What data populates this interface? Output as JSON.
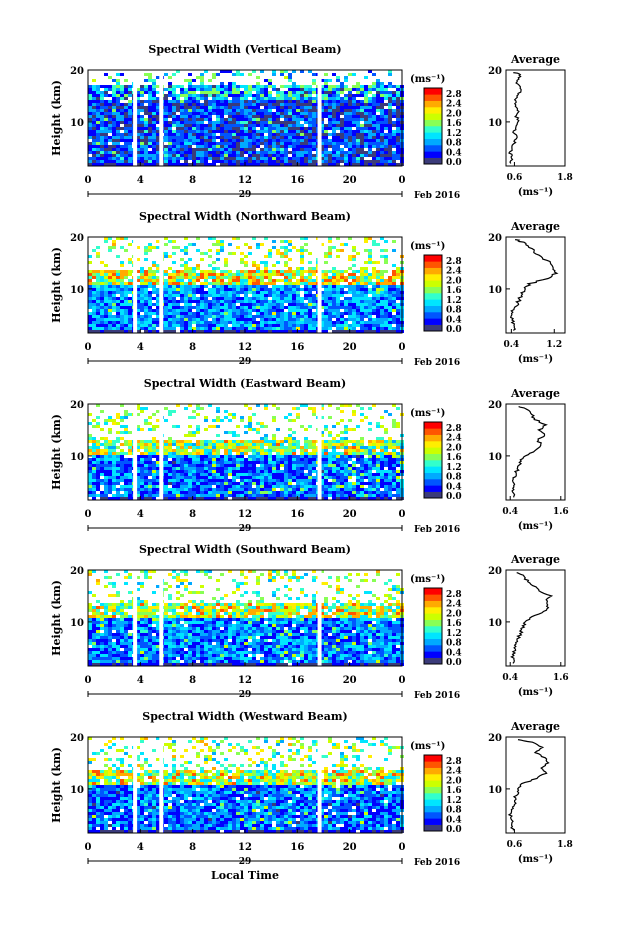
{
  "figure": {
    "xlabel": "Local Time",
    "date_label": "Feb 2016",
    "day_label": "29",
    "colorbar_unit": "(ms⁻¹)",
    "average_title": "Average",
    "average_xlabel": "(ms⁻¹)"
  },
  "colorbar": {
    "ticks": [
      "0.0",
      "0.4",
      "0.8",
      "1.2",
      "1.6",
      "2.0",
      "2.4",
      "2.8"
    ],
    "colors": [
      "#3b3b7a",
      "#0000ff",
      "#0055ff",
      "#00aaff",
      "#00e5ff",
      "#33ffcc",
      "#88ff55",
      "#ccff00",
      "#ffee00",
      "#ffaa00",
      "#ff5500",
      "#ff0000"
    ]
  },
  "chart_data": [
    {
      "type": "heatmap",
      "title": "Spectral Width (Vertical Beam)",
      "ylabel": "Height (km)",
      "x_ticks": [
        "0",
        "4",
        "8",
        "12",
        "16",
        "20",
        "0"
      ],
      "y_ticks": [
        "10",
        "20"
      ],
      "xlim": [
        0,
        24
      ],
      "ylim": [
        1.5,
        20
      ],
      "mean_level": 0.4,
      "layer_top": 15,
      "upper_mean": 0.6,
      "gaps_hours": [
        3.6,
        5.6,
        17.7
      ],
      "profile": {
        "x_ticks": [
          "0.6",
          "1.8"
        ],
        "xlim": [
          0.4,
          1.8
        ],
        "height": [
          2,
          3,
          4,
          5,
          6,
          7,
          8,
          9,
          10,
          11,
          12,
          13,
          14,
          15,
          16,
          17,
          18,
          19,
          19.5
        ],
        "width": [
          0.5,
          0.55,
          0.5,
          0.55,
          0.6,
          0.65,
          0.6,
          0.65,
          0.7,
          0.65,
          0.7,
          0.65,
          0.6,
          0.65,
          0.75,
          0.7,
          0.65,
          0.75,
          0.6
        ]
      }
    },
    {
      "type": "heatmap",
      "title": "Spectral Width (Northward Beam)",
      "ylabel": "Height (km)",
      "x_ticks": [
        "0",
        "4",
        "8",
        "12",
        "16",
        "20",
        "0"
      ],
      "y_ticks": [
        "10",
        "20"
      ],
      "xlim": [
        0,
        24
      ],
      "ylim": [
        1.5,
        20
      ],
      "mean_level": 0.7,
      "layer_top": 11.5,
      "upper_mean": 1.6,
      "gaps_hours": [
        3.6,
        5.6,
        17.7
      ],
      "profile": {
        "x_ticks": [
          "0.4",
          "1.2"
        ],
        "xlim": [
          0.3,
          1.4
        ],
        "height": [
          2,
          3,
          4,
          5,
          6,
          7,
          8,
          9,
          10,
          11,
          12,
          13,
          14,
          15,
          16,
          17,
          18,
          19,
          19.5
        ],
        "width": [
          0.45,
          0.42,
          0.45,
          0.4,
          0.45,
          0.5,
          0.55,
          0.6,
          0.65,
          0.75,
          1.05,
          1.25,
          1.2,
          1.15,
          0.95,
          0.85,
          0.75,
          0.6,
          0.5
        ]
      }
    },
    {
      "type": "heatmap",
      "title": "Spectral Width (Eastward Beam)",
      "ylabel": "Height (km)",
      "x_ticks": [
        "0",
        "4",
        "8",
        "12",
        "16",
        "20",
        "0"
      ],
      "y_ticks": [
        "10",
        "20"
      ],
      "xlim": [
        0,
        24
      ],
      "ylim": [
        1.5,
        20
      ],
      "mean_level": 0.6,
      "layer_top": 11,
      "upper_mean": 1.4,
      "gaps_hours": [
        3.6,
        5.6,
        17.7
      ],
      "profile": {
        "x_ticks": [
          "0.4",
          "1.6"
        ],
        "xlim": [
          0.3,
          1.7
        ],
        "height": [
          2,
          3,
          4,
          5,
          6,
          7,
          8,
          9,
          10,
          11,
          12,
          13,
          14,
          15,
          16,
          17,
          18,
          19,
          19.5
        ],
        "width": [
          0.5,
          0.45,
          0.5,
          0.45,
          0.5,
          0.55,
          0.6,
          0.65,
          0.75,
          1.0,
          1.15,
          1.05,
          1.2,
          1.1,
          1.25,
          1.0,
          0.9,
          0.8,
          0.6
        ]
      }
    },
    {
      "type": "heatmap",
      "title": "Spectral Width (Southward Beam)",
      "ylabel": "Height (km)",
      "x_ticks": [
        "0",
        "4",
        "8",
        "12",
        "16",
        "20",
        "0"
      ],
      "y_ticks": [
        "10",
        "20"
      ],
      "xlim": [
        0,
        24
      ],
      "ylim": [
        1.5,
        20
      ],
      "mean_level": 0.65,
      "layer_top": 11.5,
      "upper_mean": 1.5,
      "gaps_hours": [
        3.6,
        5.6,
        17.7
      ],
      "profile": {
        "x_ticks": [
          "0.4",
          "1.6"
        ],
        "xlim": [
          0.3,
          1.7
        ],
        "height": [
          2,
          3,
          4,
          5,
          6,
          7,
          8,
          9,
          10,
          11,
          12,
          13,
          14,
          15,
          16,
          17,
          18,
          19,
          19.5
        ],
        "width": [
          0.5,
          0.45,
          0.5,
          0.5,
          0.55,
          0.6,
          0.65,
          0.7,
          0.75,
          0.95,
          1.2,
          1.3,
          1.25,
          1.35,
          1.1,
          0.95,
          0.8,
          0.7,
          0.55
        ]
      }
    },
    {
      "type": "heatmap",
      "title": "Spectral Width (Westward Beam)",
      "ylabel": "Height (km)",
      "x_ticks": [
        "0",
        "4",
        "8",
        "12",
        "16",
        "20",
        "0"
      ],
      "y_ticks": [
        "10",
        "20"
      ],
      "xlim": [
        0,
        24
      ],
      "ylim": [
        1.5,
        20
      ],
      "mean_level": 0.6,
      "layer_top": 11.5,
      "upper_mean": 1.5,
      "gaps_hours": [
        3.6,
        5.6,
        17.7
      ],
      "profile": {
        "x_ticks": [
          "0.6",
          "1.8"
        ],
        "xlim": [
          0.4,
          1.8
        ],
        "height": [
          2,
          3,
          4,
          5,
          6,
          7,
          8,
          9,
          10,
          11,
          12,
          13,
          14,
          15,
          16,
          17,
          18,
          19,
          19.5
        ],
        "width": [
          0.55,
          0.5,
          0.55,
          0.5,
          0.55,
          0.6,
          0.6,
          0.65,
          0.7,
          0.8,
          1.1,
          1.35,
          1.25,
          1.4,
          1.3,
          1.1,
          1.25,
          1.0,
          0.7
        ]
      }
    }
  ]
}
